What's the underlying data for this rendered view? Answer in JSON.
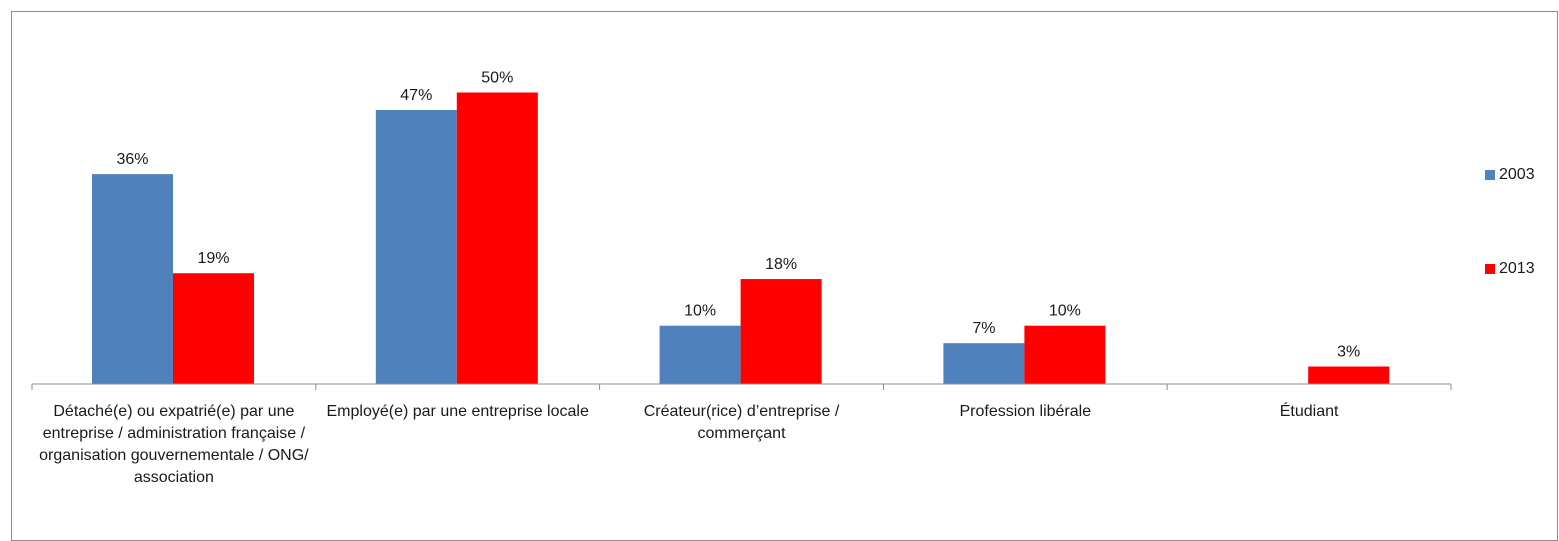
{
  "chart_data": {
    "type": "bar",
    "categories": [
      "Détaché(e) ou expatrié(e) par une entreprise / administration française / organisation gouvernementale / ONG/ association",
      "Employé(e) par une entreprise locale",
      "Créateur(rice) d’entreprise / commerçant",
      "Profession libérale",
      "Étudiant"
    ],
    "series": [
      {
        "name": "2003",
        "color": "#4f81bd",
        "values": [
          36,
          47,
          10,
          7,
          null
        ],
        "labels": [
          "36%",
          "47%",
          "10%",
          "7%",
          ""
        ]
      },
      {
        "name": "2013",
        "color": "#ff0000",
        "values": [
          19,
          50,
          18,
          10,
          3
        ],
        "labels": [
          "19%",
          "50%",
          "18%",
          "10%",
          "3%"
        ]
      }
    ],
    "ylim": [
      0,
      50
    ],
    "grid": false,
    "legend_position": "right"
  }
}
